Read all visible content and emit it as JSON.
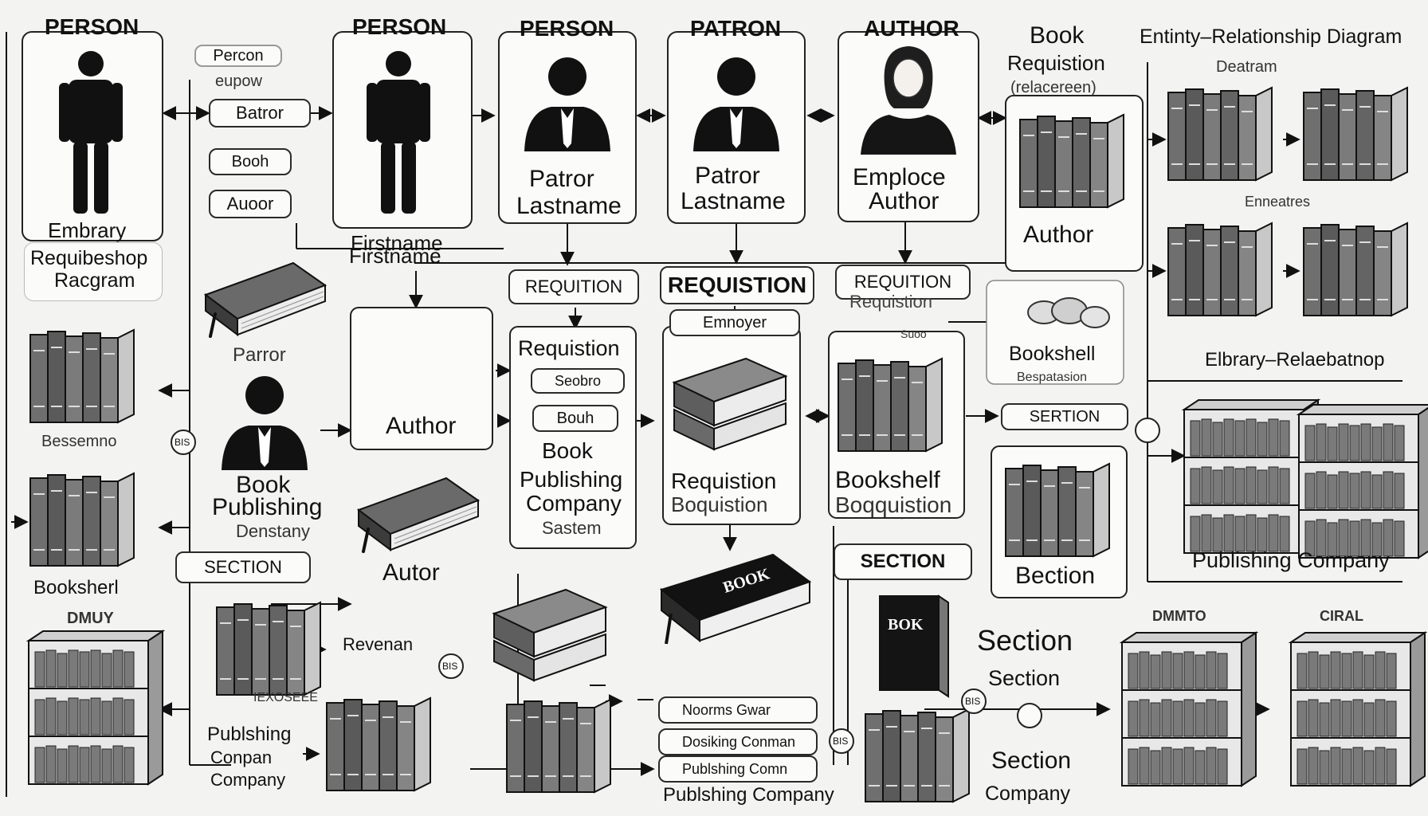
{
  "title": "Entinty–Relationship Diagram",
  "subtitle": "Deatram",
  "persons": [
    {
      "header": "PERSON",
      "caption_line1": "Embrary",
      "caption_line2": "Requibeshop",
      "caption_line3": "Racgram"
    },
    {
      "header": "PERSON",
      "caption_line1": "Firstname",
      "caption_line2": "Firstname"
    },
    {
      "header": "PERSON",
      "caption_line1": "Patror",
      "caption_line2": "Lastname"
    },
    {
      "header": "PATRON",
      "caption_line1": "Patror",
      "caption_line2": "Lastname"
    },
    {
      "header": "AUTHOR",
      "caption_line1": "Emploce",
      "caption_line2": "Author"
    }
  ],
  "book_requisition": {
    "line1": "Book",
    "line2": "Requistion",
    "line3": "(relacereen)",
    "caption": "Author"
  },
  "left_pills": [
    "Percon",
    "eupow",
    "Batror",
    "Booh",
    "Auoor"
  ],
  "requisition_pills": [
    "REQUITION",
    "REQUISTION",
    "REQUITION",
    "Requistion"
  ],
  "employer_pill": "Emnoyer",
  "bookshelf": {
    "label": "Bookshell",
    "sub": "Bespatasion"
  },
  "employer_note": "Suoo",
  "mid_labels": {
    "parnor": "Parror",
    "author1": "Author",
    "book_person_line1": "Book",
    "book_person_line2": "Publishing",
    "book_person_line3": "Denstany",
    "autor": "Autor",
    "requistion_box": "Requistion",
    "seobo": "Seobro",
    "boun": "Bouh",
    "bpc_line1": "Book",
    "bpc_line2": "Publishing",
    "bpc_line3": "Company",
    "bpc_line4": "Sastem",
    "req_boq_line1": "Requistion",
    "req_boq_line2": "Boquistion",
    "bookshelf_boq_line1": "Bookshelf",
    "bookshelf_boq_line2": "Boqquistion",
    "section_pill_mid": "SECTION",
    "beection": "Bection",
    "seertion_pill": "SERTION",
    "section_big": "Section",
    "section_sm": "Section",
    "section_low": "Section",
    "company_low": "Company"
  },
  "left_labels": {
    "besserno": "Bessemno",
    "booksherl": "Booksherl",
    "dmur": "DMUY",
    "section_pill": "SECTION",
    "revenan": "Revenan",
    "lexoseee": "IEXOSEEE",
    "pub_line1": "Publshing",
    "pub_line2": "Conpan",
    "pub_line3": "Company"
  },
  "right_labels": {
    "enneatres": "Enneatres",
    "elbrary": "Elbrary–Relaebatnop",
    "publishing": "Publishing Company",
    "tag1": "DMMTO",
    "tag2": "CIRAL"
  },
  "bottom_pills": [
    "Noorms Gwar",
    "Dosiking Conman",
    "Publshing Comn"
  ],
  "bottom_caption": "Publshing Company",
  "connector_badges": [
    "BIS",
    "BIS",
    "BIS",
    "BIS"
  ],
  "book_cover_text": "BOOK",
  "tall_book_text": "BOK",
  "colors": {
    "ink": "#111111",
    "paper": "#fbfbfa",
    "shade": "#6e6e6e",
    "light": "#c9c9c9"
  }
}
